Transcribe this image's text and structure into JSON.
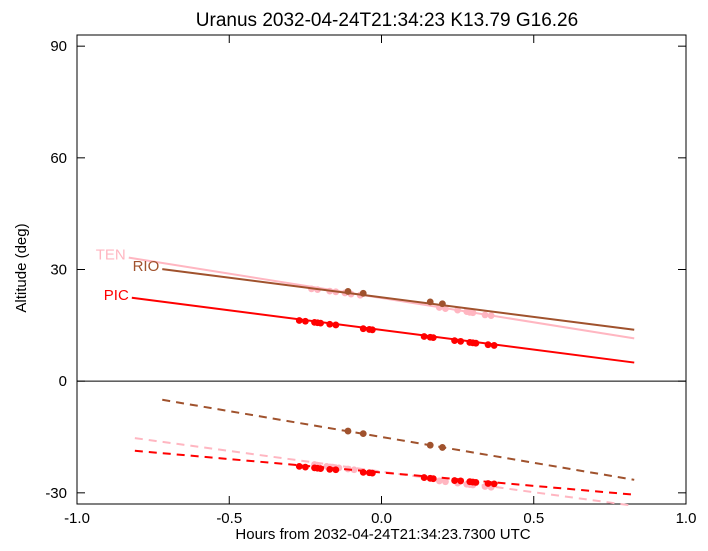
{
  "chart_data": {
    "type": "line",
    "title": "Uranus 2032-04-24T21:34:23  K13.79  G16.26",
    "xlabel": "Hours from 2032-04-24T21:34:23.7300 UTC",
    "ylabel": "Altitude (deg)",
    "xlim": [
      -1.0,
      1.0
    ],
    "ylim": [
      -33,
      93
    ],
    "xticks": [
      -1.0,
      -0.5,
      0.0,
      0.5,
      1.0
    ],
    "xtick_labels": [
      "-1.0",
      "-0.5",
      "0.0",
      "0.5",
      "1.0"
    ],
    "yticks": [
      -30,
      0,
      30,
      60,
      90
    ],
    "ytick_labels": [
      "-30",
      "0",
      "30",
      "60",
      "90"
    ],
    "zero_line": true,
    "grid": false,
    "series": [
      {
        "name": "TEN",
        "color": "#ffb6c1",
        "line": {
          "x": [
            -0.83,
            0.83
          ],
          "y": [
            33.2,
            11.5
          ]
        },
        "points": [
          [
            -0.23,
            24.8
          ],
          [
            -0.21,
            24.6
          ],
          [
            -0.17,
            24.2
          ],
          [
            -0.15,
            24.0
          ],
          [
            -0.12,
            23.7
          ],
          [
            -0.1,
            23.4
          ],
          [
            -0.07,
            23.1
          ],
          [
            0.19,
            19.8
          ],
          [
            0.21,
            19.5
          ],
          [
            0.25,
            19.1
          ],
          [
            0.28,
            18.7
          ],
          [
            0.29,
            18.5
          ],
          [
            0.3,
            18.4
          ],
          [
            0.34,
            17.8
          ],
          [
            0.36,
            17.6
          ]
        ],
        "dashed_line": {
          "x": [
            -0.81,
            0.83
          ],
          "y": [
            -15.3,
            -33.5
          ]
        },
        "dashed_points": [
          [
            -0.22,
            -22.4
          ],
          [
            -0.21,
            -22.6
          ],
          [
            -0.18,
            -22.9
          ],
          [
            -0.16,
            -23.1
          ],
          [
            -0.14,
            -23.3
          ],
          [
            -0.11,
            -23.6
          ],
          [
            -0.09,
            -23.8
          ],
          [
            0.19,
            -26.8
          ],
          [
            0.21,
            -27.0
          ],
          [
            0.25,
            -27.4
          ],
          [
            0.28,
            -27.7
          ],
          [
            0.29,
            -27.8
          ],
          [
            0.3,
            -27.9
          ],
          [
            0.34,
            -28.3
          ],
          [
            0.36,
            -28.5
          ]
        ]
      },
      {
        "name": "RIO",
        "color": "#a0522d",
        "line": {
          "x": [
            -0.72,
            0.83
          ],
          "y": [
            30.1,
            13.8
          ]
        },
        "points": [
          [
            -0.11,
            24.1
          ],
          [
            -0.06,
            23.6
          ],
          [
            0.16,
            21.3
          ],
          [
            0.2,
            20.8
          ]
        ],
        "dashed_line": {
          "x": [
            -0.72,
            0.83
          ],
          "y": [
            -5.0,
            -26.5
          ]
        },
        "dashed_points": [
          [
            -0.11,
            -13.4
          ],
          [
            -0.06,
            -14.1
          ],
          [
            0.16,
            -17.2
          ],
          [
            0.2,
            -17.8
          ]
        ]
      },
      {
        "name": "PIC",
        "color": "#ff0000",
        "line": {
          "x": [
            -0.82,
            0.83
          ],
          "y": [
            22.4,
            5.0
          ]
        },
        "points": [
          [
            -0.27,
            16.3
          ],
          [
            -0.25,
            16.1
          ],
          [
            -0.22,
            15.8
          ],
          [
            -0.21,
            15.7
          ],
          [
            -0.2,
            15.6
          ],
          [
            -0.17,
            15.3
          ],
          [
            -0.15,
            15.1
          ],
          [
            -0.06,
            14.1
          ],
          [
            -0.04,
            13.9
          ],
          [
            -0.03,
            13.8
          ],
          [
            0.14,
            12.0
          ],
          [
            0.16,
            11.8
          ],
          [
            0.17,
            11.7
          ],
          [
            0.24,
            10.9
          ],
          [
            0.26,
            10.7
          ],
          [
            0.29,
            10.4
          ],
          [
            0.3,
            10.3
          ],
          [
            0.31,
            10.2
          ],
          [
            0.35,
            9.8
          ],
          [
            0.37,
            9.6
          ]
        ],
        "dashed_line": {
          "x": [
            -0.81,
            0.83
          ],
          "y": [
            -18.7,
            -30.5
          ]
        },
        "dashed_points": [
          [
            -0.27,
            -22.9
          ],
          [
            -0.25,
            -23.1
          ],
          [
            -0.22,
            -23.3
          ],
          [
            -0.21,
            -23.4
          ],
          [
            -0.2,
            -23.5
          ],
          [
            -0.17,
            -23.7
          ],
          [
            -0.15,
            -23.8
          ],
          [
            -0.06,
            -24.5
          ],
          [
            -0.04,
            -24.6
          ],
          [
            -0.03,
            -24.7
          ],
          [
            0.14,
            -25.9
          ],
          [
            0.16,
            -26.1
          ],
          [
            0.17,
            -26.2
          ],
          [
            0.24,
            -26.7
          ],
          [
            0.26,
            -26.8
          ],
          [
            0.29,
            -27.0
          ],
          [
            0.3,
            -27.1
          ],
          [
            0.31,
            -27.2
          ],
          [
            0.35,
            -27.5
          ],
          [
            0.37,
            -27.6
          ]
        ]
      }
    ]
  }
}
